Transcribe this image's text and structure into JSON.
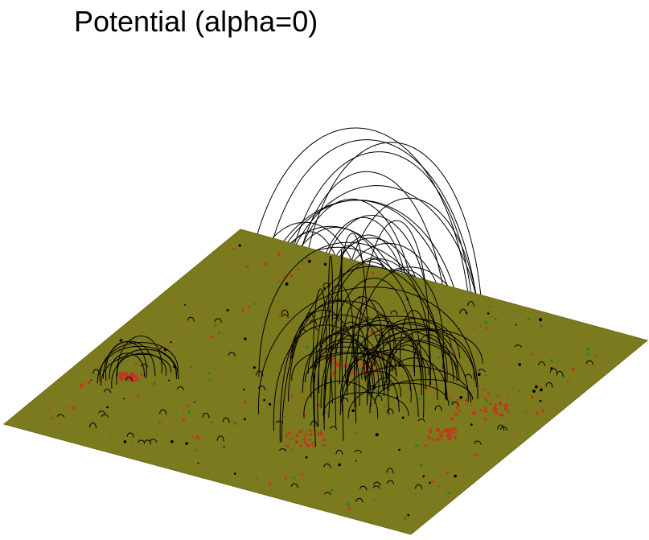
{
  "figure": {
    "title": "Potential (alpha=0)"
  },
  "colors": {
    "background": "#ffffff",
    "surface": "#7b7a1f",
    "surface_edge": "#6d6c18",
    "field_line": "#000000",
    "positive_polarity": "#c0391f",
    "negative_polarity": "#2f7d2f"
  },
  "icons": [
    "magnetogram-surface",
    "field-line-bundle"
  ]
}
